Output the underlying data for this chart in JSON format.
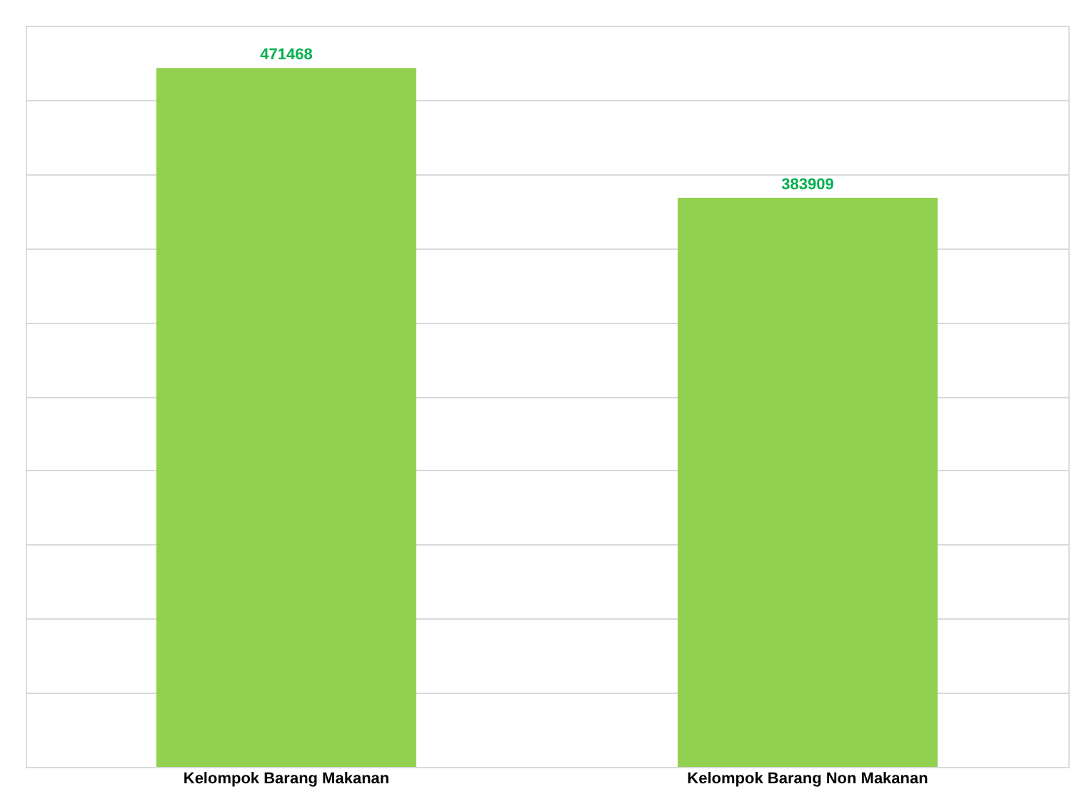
{
  "chart_data": {
    "type": "bar",
    "categories": [
      "Kelompok Barang Makanan",
      "Kelompok Barang Non Makanan"
    ],
    "values": [
      471468,
      383909
    ],
    "color": "#92d050",
    "ylim": [
      0,
      500000
    ],
    "yticks": [
      {
        "value": 0,
        "label": null
      },
      {
        "value": 50000,
        "label": null
      },
      {
        "value": 100000,
        "label": null
      },
      {
        "value": 150000,
        "label": null
      },
      {
        "value": 200000,
        "label": null
      },
      {
        "value": 250000,
        "label": null
      },
      {
        "value": 300000,
        "label": null
      },
      {
        "value": 350000,
        "label": null
      },
      {
        "value": 400000,
        "label": null
      },
      {
        "value": 450000,
        "label": null
      },
      {
        "value": 500000,
        "label": null
      }
    ],
    "grid": "y",
    "tick_labels": "x",
    "data_labels": true
  }
}
